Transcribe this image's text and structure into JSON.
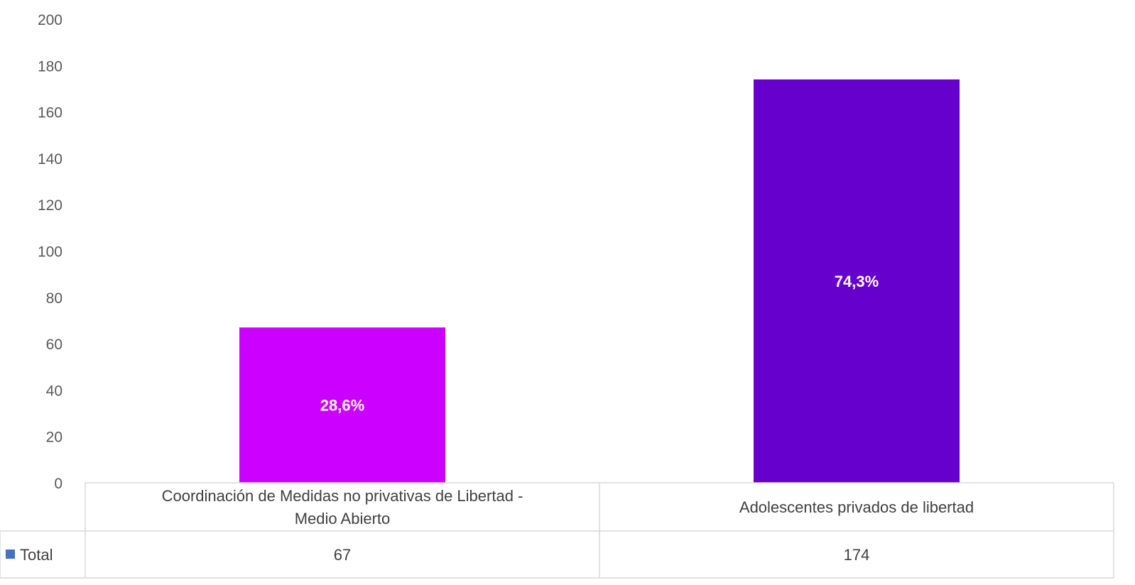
{
  "chart_data": {
    "type": "bar",
    "categories": [
      [
        "Coordinación de Medidas no privativas de Libertad -",
        "Medio Abierto"
      ],
      [
        "Adolescentes privados de libertad"
      ]
    ],
    "series": [
      {
        "name": "Total",
        "values": [
          67,
          174
        ],
        "colors": [
          "#cc00ff",
          "#6600cc"
        ],
        "data_labels": [
          "28,6%",
          "74,3%"
        ]
      }
    ],
    "yticks": [
      "0",
      "20",
      "40",
      "60",
      "80",
      "100",
      "120",
      "140",
      "160",
      "180",
      "200"
    ],
    "ylim": [
      0,
      200
    ],
    "legend_marker_color": "#4472c4",
    "table_values": [
      "67",
      "174"
    ],
    "grid": false
  }
}
